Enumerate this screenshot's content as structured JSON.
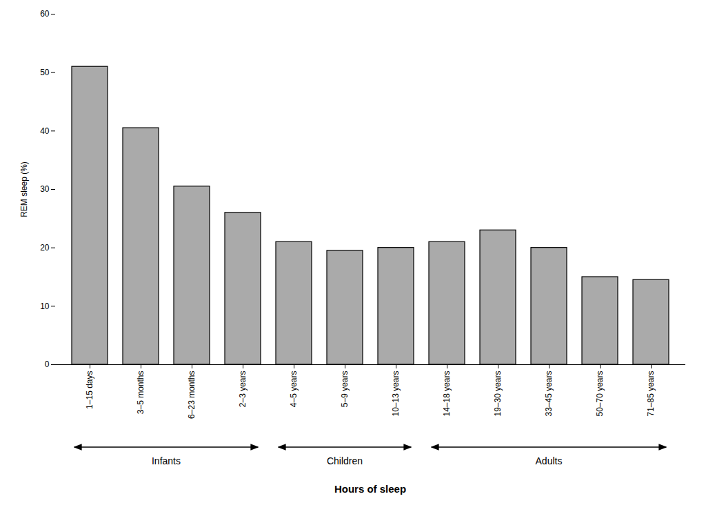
{
  "chart_data": {
    "type": "bar",
    "categories": [
      "1–15 days",
      "3–5 months",
      "6–23 months",
      "2–3 years",
      "4–5 years",
      "5–9 years",
      "10–13 years",
      "14–18 years",
      "19–30 years",
      "33–45 years",
      "50–70 years",
      "71–85 years"
    ],
    "values": [
      51.0,
      40.5,
      30.5,
      26.0,
      21.0,
      19.5,
      20.0,
      21.0,
      23.0,
      20.0,
      15.0,
      14.5
    ],
    "color": "#aaaaaa",
    "ylabel": "REM sleep (%)",
    "xlabel": "Hours of sleep",
    "ylim": [
      0,
      60
    ],
    "yticks": [
      0,
      10,
      20,
      30,
      40,
      50,
      60
    ],
    "grid": false,
    "annotations": [
      {
        "text": "Infants",
        "start": "1–15 days",
        "end": "2–3 years"
      },
      {
        "text": "Children",
        "start": "4–5 years",
        "end": "10–13 years"
      },
      {
        "text": "Adults",
        "start": "14–18 years",
        "end": "71–85 years"
      }
    ]
  }
}
